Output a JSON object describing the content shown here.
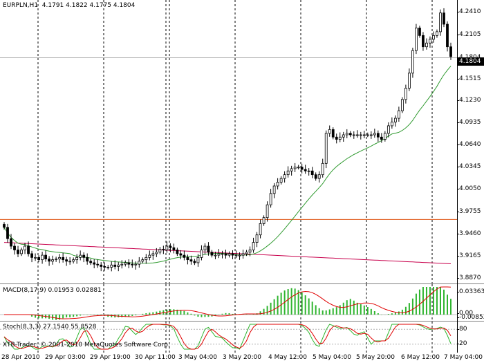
{
  "header": {
    "symbol": "EURPLN,H1",
    "ohlc": "4.1791 4.1822 4.1775 4.1804"
  },
  "price_scale": [
    "4.2410",
    "4.2105",
    "4.1804",
    "4.1515",
    "4.1230",
    "4.0935",
    "4.0640",
    "4.0345",
    "4.0050",
    "3.9755",
    "3.9460",
    "3.9165",
    "3.8870"
  ],
  "current_price": "4.1804",
  "macd": {
    "title": "MACD(8,17,9) 0.01953 0.02881",
    "scale": [
      "0.03363",
      "0.00",
      "-0.00852"
    ]
  },
  "stoch": {
    "title": "Stoch(8,3,3) 27.1540 55.8528",
    "scale": [
      "80",
      "20"
    ]
  },
  "copyright": "XTB-Trader, © 2001-2010 MetaQuotes Software Corp.",
  "time_axis": [
    "28 Apr 2010",
    "29 Apr 03:00",
    "29 Apr 19:00",
    "30 Apr 11:00",
    "3 May 04:00",
    "3 May 20:00",
    "4 May 12:00",
    "5 May 04:00",
    "5 May 20:00",
    "6 May 12:00",
    "7 May 04:00"
  ],
  "colors": {
    "candle": "#000000",
    "ma_fast": "#2f9a2f",
    "ma_slow": "#c8004c",
    "hline": "#e05a1a",
    "macd_hist": "#2fb52f",
    "macd_signal": "#e00000",
    "stoch_main": "#2fb52f",
    "stoch_signal": "#e00000"
  },
  "chart_data": {
    "type": "line",
    "ylim": [
      3.885,
      4.248
    ],
    "hline_price": 3.9655,
    "closes": [
      3.955,
      3.94,
      3.93,
      3.925,
      3.92,
      3.925,
      3.93,
      3.92,
      3.915,
      3.915,
      3.912,
      3.918,
      3.913,
      3.91,
      3.912,
      3.913,
      3.915,
      3.912,
      3.91,
      3.91,
      3.912,
      3.915,
      3.918,
      3.915,
      3.91,
      3.908,
      3.906,
      3.905,
      3.903,
      3.902,
      3.902,
      3.905,
      3.903,
      3.905,
      3.906,
      3.908,
      3.906,
      3.905,
      3.906,
      3.91,
      3.912,
      3.915,
      3.918,
      3.92,
      3.922,
      3.926,
      3.925,
      3.93,
      3.928,
      3.925,
      3.92,
      3.918,
      3.915,
      3.912,
      3.91,
      3.908,
      3.915,
      3.925,
      3.93,
      3.922,
      3.918,
      3.918,
      3.92,
      3.92,
      3.918,
      3.92,
      3.918,
      3.918,
      3.918,
      3.92,
      3.922,
      3.925,
      3.935,
      3.945,
      3.96,
      3.968,
      3.985,
      4.0,
      4.01,
      4.015,
      4.02,
      4.025,
      4.03,
      4.033,
      4.035,
      4.035,
      4.032,
      4.03,
      4.03,
      4.025,
      4.02,
      4.025,
      4.04,
      4.08,
      4.085,
      4.075,
      4.072,
      4.075,
      4.078,
      4.08,
      4.078,
      4.078,
      4.078,
      4.078,
      4.078,
      4.078,
      4.078,
      4.08,
      4.075,
      4.072,
      4.08,
      4.09,
      4.095,
      4.1,
      4.11,
      4.125,
      4.14,
      4.16,
      4.19,
      4.22,
      4.21,
      4.195,
      4.2,
      4.205,
      4.21,
      4.215,
      4.24,
      4.225,
      4.195,
      4.182
    ]
  }
}
